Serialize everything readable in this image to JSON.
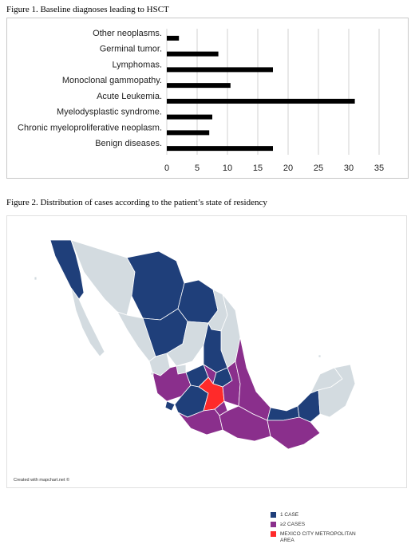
{
  "figure1": {
    "caption": "Figure 1. Baseline diagnoses leading to HSCT"
  },
  "chart_data": {
    "type": "bar",
    "orientation": "horizontal",
    "title": "",
    "xlabel": "",
    "ylabel": "",
    "categories": [
      "Other neoplasms.",
      "Germinal tumor.",
      "Lymphomas.",
      "Monoclonal gammopathy.",
      "Acute Leukemia.",
      "Myelodysplastic syndrome.",
      "Chronic myeloproliferative neoplasm.",
      "Benign diseases."
    ],
    "values": [
      2,
      8.5,
      17.5,
      10.5,
      31,
      7.5,
      7,
      17.5
    ],
    "xlim": [
      0,
      35
    ],
    "xticks": [
      0,
      5,
      10,
      15,
      20,
      25,
      30,
      35
    ],
    "grid": "vertical",
    "bar_color": "#000000",
    "grid_color": "#d0d0d0"
  },
  "figure2": {
    "caption": "Figure 2. Distribution of cases according to the patient’s state of residency",
    "legend": [
      {
        "label": "1 CASE",
        "color": "#1f3f7a"
      },
      {
        "label": "≥2 CASES",
        "color": "#8a2f8c"
      },
      {
        "label": "MEXICO CITY METROPOLITAN AREA",
        "color": "#ff2a2a"
      }
    ],
    "other_color": "#d3dbe0",
    "credit": "Created with mapchart.net ©"
  }
}
